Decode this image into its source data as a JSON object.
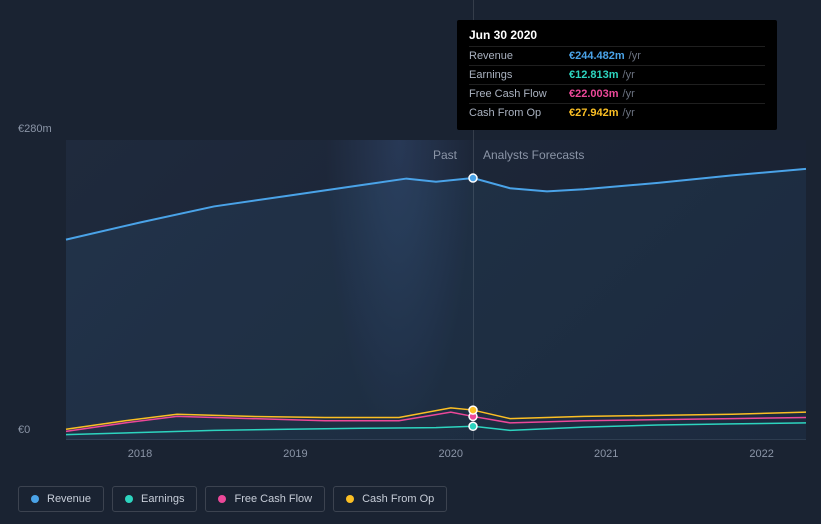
{
  "chart": {
    "type": "line-area",
    "background_color": "#1a2332",
    "plot_background": "#1d2838",
    "grid_color": "rgba(255,255,255,0.08)",
    "ylim": [
      0,
      280
    ],
    "y_ticks": [
      {
        "value": 280,
        "label": "€280m"
      },
      {
        "value": 0,
        "label": "€0"
      }
    ],
    "x_years": [
      "2018",
      "2019",
      "2020",
      "2021",
      "2022"
    ],
    "divider_date": "Jun 30 2020",
    "section_past": "Past",
    "section_forecast": "Analysts Forecasts",
    "series": [
      {
        "id": "revenue",
        "label": "Revenue",
        "color": "#4aa3e8",
        "area": true,
        "area_opacity": 0.08,
        "line_width": 2,
        "points": [
          {
            "x": 0.0,
            "y": 187
          },
          {
            "x": 0.1,
            "y": 203
          },
          {
            "x": 0.2,
            "y": 218
          },
          {
            "x": 0.3,
            "y": 228
          },
          {
            "x": 0.4,
            "y": 238
          },
          {
            "x": 0.46,
            "y": 244
          },
          {
            "x": 0.5,
            "y": 241
          },
          {
            "x": 0.55,
            "y": 244.48
          },
          {
            "x": 0.6,
            "y": 235
          },
          {
            "x": 0.65,
            "y": 232
          },
          {
            "x": 0.7,
            "y": 234
          },
          {
            "x": 0.8,
            "y": 240
          },
          {
            "x": 0.9,
            "y": 247
          },
          {
            "x": 1.0,
            "y": 253
          }
        ]
      },
      {
        "id": "earnings",
        "label": "Earnings",
        "color": "#2dd4bf",
        "line_width": 1.5,
        "points": [
          {
            "x": 0.0,
            "y": 5
          },
          {
            "x": 0.1,
            "y": 7
          },
          {
            "x": 0.2,
            "y": 9
          },
          {
            "x": 0.3,
            "y": 10
          },
          {
            "x": 0.4,
            "y": 11
          },
          {
            "x": 0.5,
            "y": 11.5
          },
          {
            "x": 0.55,
            "y": 12.81
          },
          {
            "x": 0.6,
            "y": 9
          },
          {
            "x": 0.7,
            "y": 12
          },
          {
            "x": 0.8,
            "y": 14
          },
          {
            "x": 0.9,
            "y": 15
          },
          {
            "x": 1.0,
            "y": 16
          }
        ]
      },
      {
        "id": "fcf",
        "label": "Free Cash Flow",
        "color": "#ec4899",
        "line_width": 1.5,
        "points": [
          {
            "x": 0.0,
            "y": 8
          },
          {
            "x": 0.08,
            "y": 16
          },
          {
            "x": 0.15,
            "y": 22
          },
          {
            "x": 0.25,
            "y": 20
          },
          {
            "x": 0.35,
            "y": 18
          },
          {
            "x": 0.45,
            "y": 18
          },
          {
            "x": 0.52,
            "y": 26
          },
          {
            "x": 0.55,
            "y": 22.0
          },
          {
            "x": 0.6,
            "y": 16
          },
          {
            "x": 0.7,
            "y": 18
          },
          {
            "x": 0.8,
            "y": 19
          },
          {
            "x": 0.9,
            "y": 20
          },
          {
            "x": 1.0,
            "y": 21
          }
        ]
      },
      {
        "id": "cfo",
        "label": "Cash From Op",
        "color": "#fbbf24",
        "line_width": 1.5,
        "points": [
          {
            "x": 0.0,
            "y": 10
          },
          {
            "x": 0.08,
            "y": 18
          },
          {
            "x": 0.15,
            "y": 24
          },
          {
            "x": 0.25,
            "y": 22
          },
          {
            "x": 0.35,
            "y": 21
          },
          {
            "x": 0.45,
            "y": 21
          },
          {
            "x": 0.52,
            "y": 30
          },
          {
            "x": 0.55,
            "y": 27.94
          },
          {
            "x": 0.6,
            "y": 20
          },
          {
            "x": 0.7,
            "y": 22
          },
          {
            "x": 0.8,
            "y": 23
          },
          {
            "x": 0.9,
            "y": 24
          },
          {
            "x": 1.0,
            "y": 26
          }
        ]
      }
    ],
    "marker_x": 0.55,
    "tooltip": {
      "title": "Jun 30 2020",
      "rows": [
        {
          "label": "Revenue",
          "value": "€244.482m",
          "unit": "/yr",
          "color": "#4aa3e8"
        },
        {
          "label": "Earnings",
          "value": "€12.813m",
          "unit": "/yr",
          "color": "#2dd4bf"
        },
        {
          "label": "Free Cash Flow",
          "value": "€22.003m",
          "unit": "/yr",
          "color": "#ec4899"
        },
        {
          "label": "Cash From Op",
          "value": "€27.942m",
          "unit": "/yr",
          "color": "#fbbf24"
        }
      ]
    },
    "legend_font_size": 11,
    "label_font_size": 11
  }
}
